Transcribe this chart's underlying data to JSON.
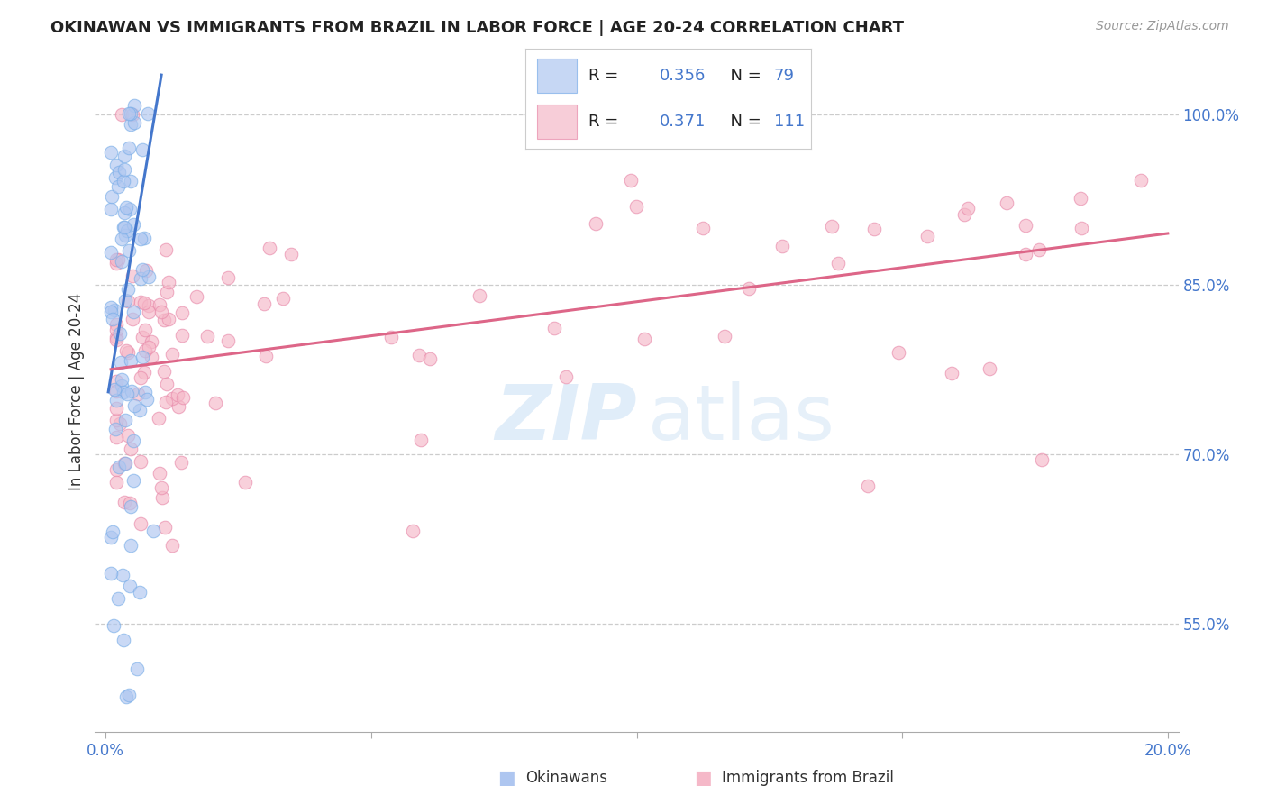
{
  "title": "OKINAWAN VS IMMIGRANTS FROM BRAZIL IN LABOR FORCE | AGE 20-24 CORRELATION CHART",
  "source": "Source: ZipAtlas.com",
  "ylabel": "In Labor Force | Age 20-24",
  "xlim": [
    -0.002,
    0.202
  ],
  "ylim": [
    0.455,
    1.055
  ],
  "right_yticks": [
    1.0,
    0.85,
    0.7,
    0.55
  ],
  "right_yticklabels": [
    "100.0%",
    "85.0%",
    "70.0%",
    "55.0%"
  ],
  "xticks": [
    0.0,
    0.05,
    0.1,
    0.15,
    0.2
  ],
  "xticklabels": [
    "0.0%",
    "",
    "",
    "",
    "20.0%"
  ],
  "blue_R": "0.356",
  "blue_N": "79",
  "pink_R": "0.371",
  "pink_N": "111",
  "blue_fill_color": "#aec6f0",
  "blue_edge_color": "#7aaee8",
  "pink_fill_color": "#f5b8c8",
  "pink_edge_color": "#e88aaa",
  "blue_line_color": "#4477cc",
  "pink_line_color": "#dd6688",
  "title_color": "#222222",
  "axis_color": "#4477cc",
  "grid_color": "#cccccc",
  "background_color": "#ffffff",
  "legend_label_blue": "Okinawans",
  "legend_label_pink": "Immigrants from Brazil",
  "blue_trend_x0": 0.0005,
  "blue_trend_x1": 0.0105,
  "blue_trend_y0": 0.755,
  "blue_trend_y1": 1.035,
  "pink_trend_x0": 0.001,
  "pink_trend_x1": 0.2,
  "pink_trend_y0": 0.775,
  "pink_trend_y1": 0.895
}
